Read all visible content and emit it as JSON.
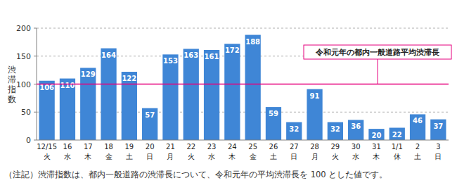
{
  "chart_data": {
    "type": "bar",
    "y_label": "渋滞指数",
    "categories": [
      "12/15\n火",
      "16\n水",
      "17\n木",
      "18\n金",
      "19\n土",
      "20\n日",
      "21\n月",
      "22\n火",
      "23\n水",
      "24\n木",
      "25\n金",
      "26\n土",
      "27\n日",
      "28\n月",
      "29\n火",
      "30\n水",
      "31\n木",
      "1/1\n休",
      "2\n土",
      "3\n日"
    ],
    "values": [
      106,
      110,
      129,
      164,
      122,
      57,
      153,
      163,
      161,
      172,
      188,
      59,
      32,
      91,
      32,
      36,
      20,
      22,
      46,
      37
    ],
    "color": "#3f86d6",
    "ylim": [
      0,
      200
    ],
    "yticks": [
      0,
      50,
      100,
      150,
      200
    ],
    "grid": true,
    "data_labels": true,
    "annotations": [
      {
        "label": "令和元年の都内一般道路平均渋滞長",
        "value": 100
      }
    ],
    "note": "（注記）渋滞指数は、都内一般道路の渋滞長について、令和元年の平均渋滞長を 100 とした値です。"
  }
}
